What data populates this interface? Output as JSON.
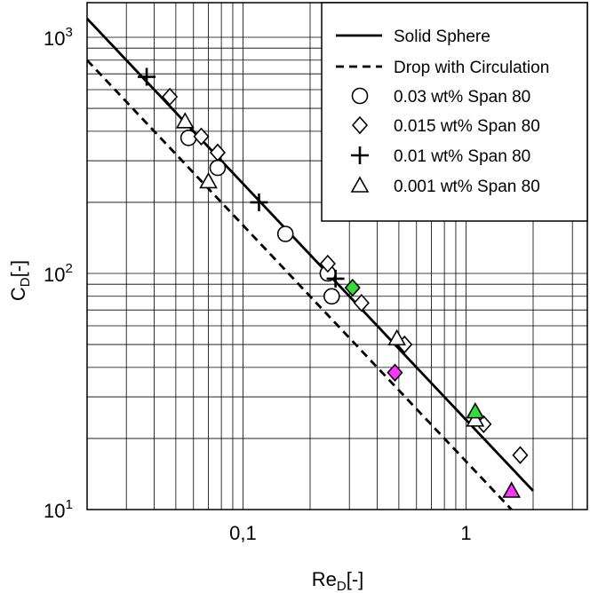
{
  "chart_data": {
    "type": "scatter",
    "xscale": "log",
    "yscale": "log",
    "xlim": [
      0.02,
      3.5
    ],
    "ylim": [
      10,
      1000
    ],
    "grid": true,
    "xlabel": "Re",
    "xlabel_sub": "D",
    "xlabel_unit": "[-]",
    "ylabel": "C",
    "ylabel_sub": "D",
    "ylabel_unit": "[-]",
    "x_ticks": [
      {
        "value": 0.1,
        "label": "0,1"
      },
      {
        "value": 1,
        "label": "1"
      }
    ],
    "y_ticks": [
      {
        "value": 10,
        "base": "10",
        "exp": "1"
      },
      {
        "value": 100,
        "base": "10",
        "exp": "2"
      },
      {
        "value": 1000,
        "base": "10",
        "exp": "3"
      }
    ],
    "legend_position": "top-right",
    "lines": [
      {
        "name": "Solid Sphere",
        "style": "solid",
        "points": [
          [
            0.02,
            1200
          ],
          [
            2.0,
            12
          ]
        ]
      },
      {
        "name": "Drop with Circulation",
        "style": "dashed",
        "points": [
          [
            0.02,
            800
          ],
          [
            1.6,
            10
          ]
        ]
      }
    ],
    "series": [
      {
        "name": "0.03 wt%  Span 80",
        "marker": "circle",
        "points": [
          [
            0.057,
            375
          ],
          [
            0.077,
            280
          ],
          [
            0.155,
            147
          ],
          [
            0.24,
            100
          ],
          [
            0.25,
            80
          ]
        ]
      },
      {
        "name": "0.015 wt% Span 80",
        "marker": "diamond",
        "points": [
          [
            0.047,
            560
          ],
          [
            0.065,
            380
          ],
          [
            0.077,
            325
          ],
          [
            0.24,
            110
          ],
          [
            0.34,
            75
          ],
          [
            0.53,
            50
          ],
          [
            1.2,
            23
          ],
          [
            1.75,
            17
          ]
        ]
      },
      {
        "name": "0.01 wt% Span 80",
        "marker": "plus",
        "points": [
          [
            0.037,
            680
          ],
          [
            0.118,
            200
          ],
          [
            0.26,
            95
          ]
        ]
      },
      {
        "name": "0.001 wt% Span 80",
        "marker": "triangle",
        "points": [
          [
            0.055,
            440
          ],
          [
            0.07,
            245
          ],
          [
            0.49,
            53
          ],
          [
            1.1,
            24
          ]
        ]
      }
    ],
    "highlighted_points": [
      {
        "marker": "diamond",
        "color": "#33dd33",
        "point": [
          0.31,
          87
        ]
      },
      {
        "marker": "triangle",
        "color": "#33dd33",
        "point": [
          1.1,
          26
        ]
      },
      {
        "marker": "diamond",
        "color": "#ff33ff",
        "point": [
          0.48,
          38
        ]
      },
      {
        "marker": "triangle",
        "color": "#ff33ff",
        "point": [
          1.6,
          12
        ]
      }
    ]
  }
}
